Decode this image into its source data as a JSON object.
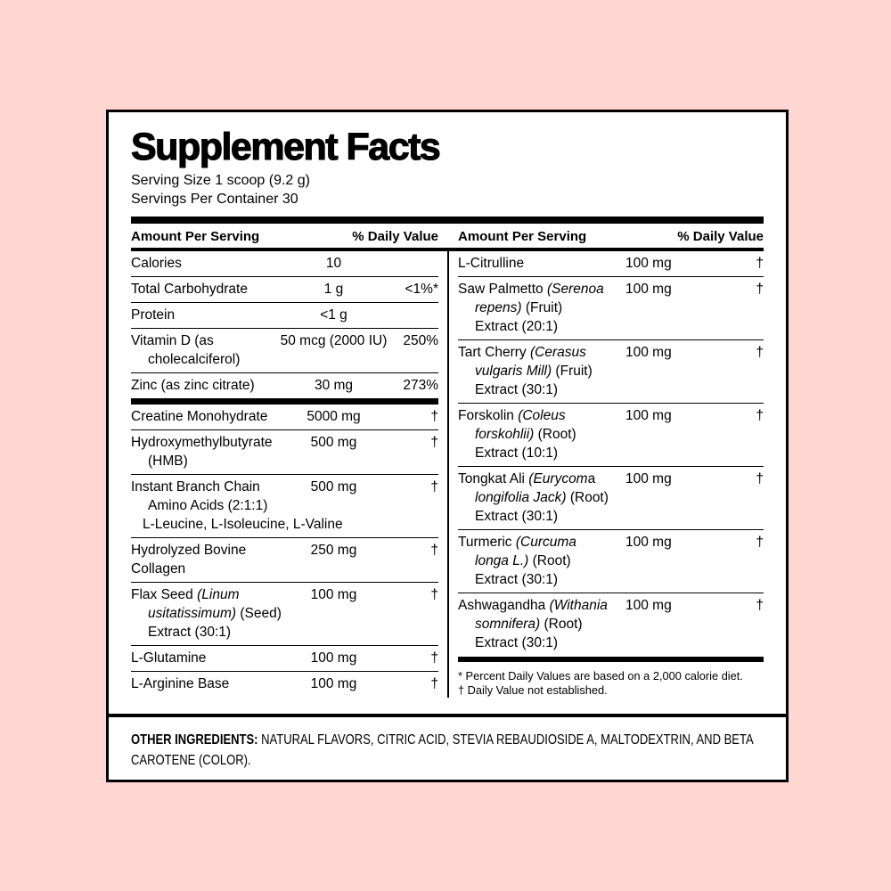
{
  "colors": {
    "page_background": "#FFD6D2",
    "panel_background": "#FFFFFF",
    "ink": "#000000"
  },
  "label": {
    "title": "Supplement Facts",
    "serving_size": "Serving Size 1 scoop (9.2 g)",
    "servings_per_container": "Servings Per Container 30",
    "column_headers": {
      "amount": "Amount Per Serving",
      "daily_value": "% Daily Value"
    },
    "left_column": {
      "sections": [
        {
          "rows": [
            {
              "name_lines": [
                {
                  "indent": 0,
                  "segments": [
                    {
                      "t": "Calories"
                    }
                  ]
                }
              ],
              "amount": "10",
              "dv": ""
            },
            {
              "name_lines": [
                {
                  "indent": 0,
                  "segments": [
                    {
                      "t": "Total Carbohydrate"
                    }
                  ]
                }
              ],
              "amount": "1 g",
              "dv": "<1%*"
            },
            {
              "name_lines": [
                {
                  "indent": 0,
                  "segments": [
                    {
                      "t": "Protein"
                    }
                  ]
                }
              ],
              "amount": "<1 g",
              "dv": ""
            },
            {
              "name_lines": [
                {
                  "indent": 0,
                  "segments": [
                    {
                      "t": "Vitamin D (as"
                    }
                  ]
                },
                {
                  "indent": 19,
                  "segments": [
                    {
                      "t": "cholecalciferol)"
                    }
                  ]
                }
              ],
              "amount": "50 mcg (2000 IU)",
              "dv": "250%"
            },
            {
              "name_lines": [
                {
                  "indent": 0,
                  "segments": [
                    {
                      "t": "Zinc (as zinc citrate)"
                    }
                  ]
                }
              ],
              "amount": "30 mg",
              "dv": "273%"
            }
          ]
        },
        {
          "rows": [
            {
              "name_lines": [
                {
                  "indent": 0,
                  "segments": [
                    {
                      "t": "Creatine Monohydrate"
                    }
                  ]
                }
              ],
              "amount": "5000 mg",
              "dv": "†"
            },
            {
              "name_lines": [
                {
                  "indent": 0,
                  "segments": [
                    {
                      "t": "Hydroxymethylbutyrate"
                    }
                  ]
                },
                {
                  "indent": 19,
                  "segments": [
                    {
                      "t": "(HMB)"
                    }
                  ]
                }
              ],
              "amount": "500 mg",
              "dv": "†"
            },
            {
              "name_lines": [
                {
                  "indent": 0,
                  "segments": [
                    {
                      "t": "Instant Branch Chain"
                    }
                  ]
                },
                {
                  "indent": 19,
                  "segments": [
                    {
                      "t": "Amino Acids (2:1:1)"
                    }
                  ]
                },
                {
                  "indent": 13,
                  "segments": [
                    {
                      "t": "L-Leucine, L-Isoleucine, L-Valine"
                    }
                  ]
                }
              ],
              "amount": "500 mg",
              "dv": "†"
            },
            {
              "name_lines": [
                {
                  "indent": 0,
                  "segments": [
                    {
                      "t": "Hydrolyzed Bovine"
                    }
                  ]
                },
                {
                  "indent": 0,
                  "segments": [
                    {
                      "t": "Collagen"
                    }
                  ]
                }
              ],
              "amount": "250 mg",
              "dv": "†"
            },
            {
              "name_lines": [
                {
                  "indent": 0,
                  "segments": [
                    {
                      "t": "Flax Seed "
                    },
                    {
                      "t": "(Linum",
                      "i": true
                    }
                  ]
                },
                {
                  "indent": 19,
                  "segments": [
                    {
                      "t": "usitatissimum)",
                      "i": true
                    },
                    {
                      "t": " (Seed)"
                    }
                  ]
                },
                {
                  "indent": 19,
                  "segments": [
                    {
                      "t": "Extract (30:1)"
                    }
                  ]
                }
              ],
              "amount": "100 mg",
              "dv": "†"
            },
            {
              "name_lines": [
                {
                  "indent": 0,
                  "segments": [
                    {
                      "t": "L-Glutamine"
                    }
                  ]
                }
              ],
              "amount": "100 mg",
              "dv": "†"
            },
            {
              "name_lines": [
                {
                  "indent": 0,
                  "segments": [
                    {
                      "t": "L-Arginine Base"
                    }
                  ]
                }
              ],
              "amount": "100 mg",
              "dv": "†"
            }
          ]
        }
      ]
    },
    "right_column": {
      "sections": [
        {
          "rows": [
            {
              "name_lines": [
                {
                  "indent": 0,
                  "segments": [
                    {
                      "t": "L-Citrulline"
                    }
                  ]
                }
              ],
              "amount": "100 mg",
              "dv": "†"
            },
            {
              "name_lines": [
                {
                  "indent": 0,
                  "segments": [
                    {
                      "t": "Saw Palmetto "
                    },
                    {
                      "t": "(Serenoa",
                      "i": true
                    }
                  ]
                },
                {
                  "indent": 19,
                  "segments": [
                    {
                      "t": "repens)",
                      "i": true
                    },
                    {
                      "t": " (Fruit)"
                    }
                  ]
                },
                {
                  "indent": 19,
                  "segments": [
                    {
                      "t": "Extract (20:1)"
                    }
                  ]
                }
              ],
              "amount": "100 mg",
              "dv": "†"
            },
            {
              "name_lines": [
                {
                  "indent": 0,
                  "segments": [
                    {
                      "t": "Tart Cherry "
                    },
                    {
                      "t": "(Cerasus",
                      "i": true
                    }
                  ]
                },
                {
                  "indent": 19,
                  "segments": [
                    {
                      "t": "vulgaris Mill)",
                      "i": true
                    },
                    {
                      "t": " (Fruit)"
                    }
                  ]
                },
                {
                  "indent": 19,
                  "segments": [
                    {
                      "t": "Extract (30:1)"
                    }
                  ]
                }
              ],
              "amount": "100 mg",
              "dv": "†"
            },
            {
              "name_lines": [
                {
                  "indent": 0,
                  "segments": [
                    {
                      "t": "Forskolin "
                    },
                    {
                      "t": "(Coleus",
                      "i": true
                    }
                  ]
                },
                {
                  "indent": 19,
                  "segments": [
                    {
                      "t": "forskohlii)",
                      "i": true
                    },
                    {
                      "t": " (Root)"
                    }
                  ]
                },
                {
                  "indent": 19,
                  "segments": [
                    {
                      "t": "Extract (10:1)"
                    }
                  ]
                }
              ],
              "amount": "100 mg",
              "dv": "†"
            },
            {
              "name_lines": [
                {
                  "indent": 0,
                  "segments": [
                    {
                      "t": "Tongkat Ali "
                    },
                    {
                      "t": "(Eurycom",
                      "i": true
                    },
                    {
                      "t": "a"
                    }
                  ]
                },
                {
                  "indent": 19,
                  "segments": [
                    {
                      "t": "longifolia Jack)",
                      "i": true
                    },
                    {
                      "t": " (Root)"
                    }
                  ]
                },
                {
                  "indent": 19,
                  "segments": [
                    {
                      "t": "Extract (30:1)"
                    }
                  ]
                }
              ],
              "amount": "100 mg",
              "dv": "†"
            },
            {
              "name_lines": [
                {
                  "indent": 0,
                  "segments": [
                    {
                      "t": "Turmeric "
                    },
                    {
                      "t": "(Curcuma",
                      "i": true
                    }
                  ]
                },
                {
                  "indent": 19,
                  "segments": [
                    {
                      "t": "longa L.)",
                      "i": true
                    },
                    {
                      "t": " (Root)"
                    }
                  ]
                },
                {
                  "indent": 19,
                  "segments": [
                    {
                      "t": "Extract (30:1)"
                    }
                  ]
                }
              ],
              "amount": "100 mg",
              "dv": "†"
            },
            {
              "name_lines": [
                {
                  "indent": 0,
                  "segments": [
                    {
                      "t": "Ashwagandha "
                    },
                    {
                      "t": "(Withania",
                      "i": true
                    }
                  ]
                },
                {
                  "indent": 19,
                  "segments": [
                    {
                      "t": "somnifera)",
                      "i": true
                    },
                    {
                      "t": " (Root)"
                    }
                  ]
                },
                {
                  "indent": 19,
                  "segments": [
                    {
                      "t": "Extract (30:1)"
                    }
                  ]
                }
              ],
              "amount": "100 mg",
              "dv": "†"
            }
          ]
        }
      ],
      "footnotes": [
        "* Percent Daily Values are based on a 2,000 calorie diet.",
        "† Daily Value not established."
      ]
    },
    "other_ingredients": {
      "label": "OTHER INGREDIENTS:",
      "text": " NATURAL FLAVORS, CITRIC ACID, STEVIA REBAUDIOSIDE A, MALTODEXTRIN, AND BETA CAROTENE (COLOR)."
    }
  }
}
